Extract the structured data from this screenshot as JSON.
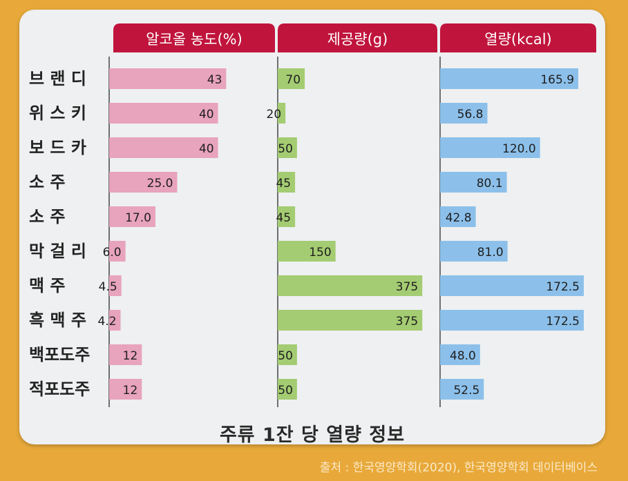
{
  "chart_data": {
    "type": "bar",
    "title": "주류 1잔 당 열량 정보",
    "categories": [
      "브 랜 디",
      "위 스 키",
      "보 드 카",
      "소    주",
      "소    주",
      "막 걸 리",
      "맥    주",
      "흑 맥 주",
      "백포도주",
      "적포도주"
    ],
    "series": [
      {
        "name": "알코올 농도(%)",
        "color": "#e8a3bd",
        "labels": [
          "43",
          "40",
          "40",
          "25.0",
          "17.0",
          "6.0",
          "4.5",
          "4.2",
          "12",
          "12"
        ],
        "values": [
          43,
          40,
          40,
          25.0,
          17.0,
          6.0,
          4.5,
          4.2,
          12,
          12
        ],
        "xlim": [
          0,
          50
        ]
      },
      {
        "name": "제공량(g)",
        "color": "#a4cc72",
        "labels": [
          "70",
          "20",
          "50",
          "45",
          "45",
          "150",
          "375",
          "375",
          "50",
          "50"
        ],
        "values": [
          70,
          20,
          50,
          45,
          45,
          150,
          375,
          375,
          50,
          50
        ],
        "xlim": [
          0,
          380
        ]
      },
      {
        "name": "열량(kcal)",
        "color": "#8cc0ea",
        "labels": [
          "165.9",
          "56.8",
          "120.0",
          "80.1",
          "42.8",
          "81.0",
          "172.5",
          "172.5",
          "48.0",
          "52.5"
        ],
        "values": [
          165.9,
          56.8,
          120.0,
          80.1,
          42.8,
          81.0,
          172.5,
          172.5,
          48.0,
          52.5
        ],
        "xlim": [
          0,
          175
        ]
      }
    ],
    "header_color": "#c0143c",
    "grid": false,
    "legend": "top"
  },
  "source": "출처 : 한국영양학회(2020), 한국영양학회 데이터베이스"
}
